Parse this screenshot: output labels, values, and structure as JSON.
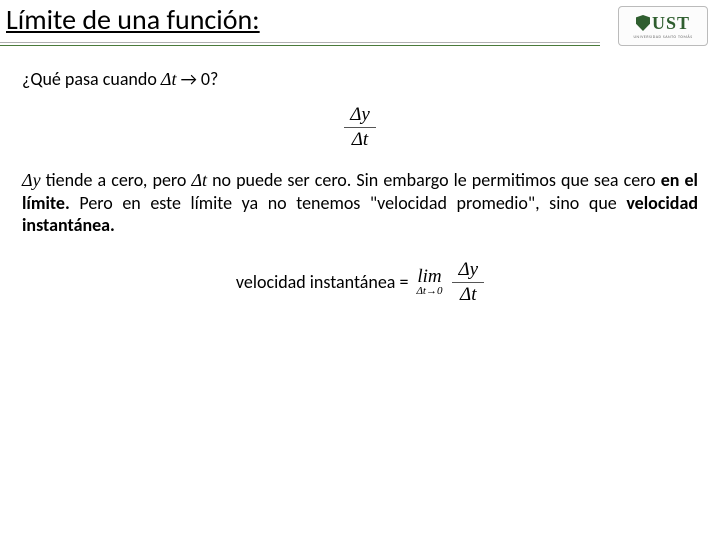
{
  "header": {
    "title": "Límite de una función:",
    "logo_text": "UST",
    "logo_sub": "UNIVERSIDAD SANTO TOMÁS"
  },
  "q1": {
    "prefix": "¿Qué pasa cuando ",
    "var": "Δt",
    "suffix": " → 0?"
  },
  "frac1": {
    "num": "Δy",
    "den": "Δt"
  },
  "para": {
    "t1": "Δy",
    "t2": " tiende a cero, pero ",
    "t3": "Δt",
    "t4": " no puede ser cero. Sin embargo le permitimos que sea cero ",
    "t5": "en el límite.",
    "t6": " Pero en este límite ya no tenemos \"velocidad promedio\", sino que ",
    "t7": "velocidad instantánea."
  },
  "vel": {
    "label": "velocidad instantánea =",
    "lim_top": "lim",
    "lim_bot": "Δt→0",
    "num": "Δy",
    "den": "Δt"
  }
}
